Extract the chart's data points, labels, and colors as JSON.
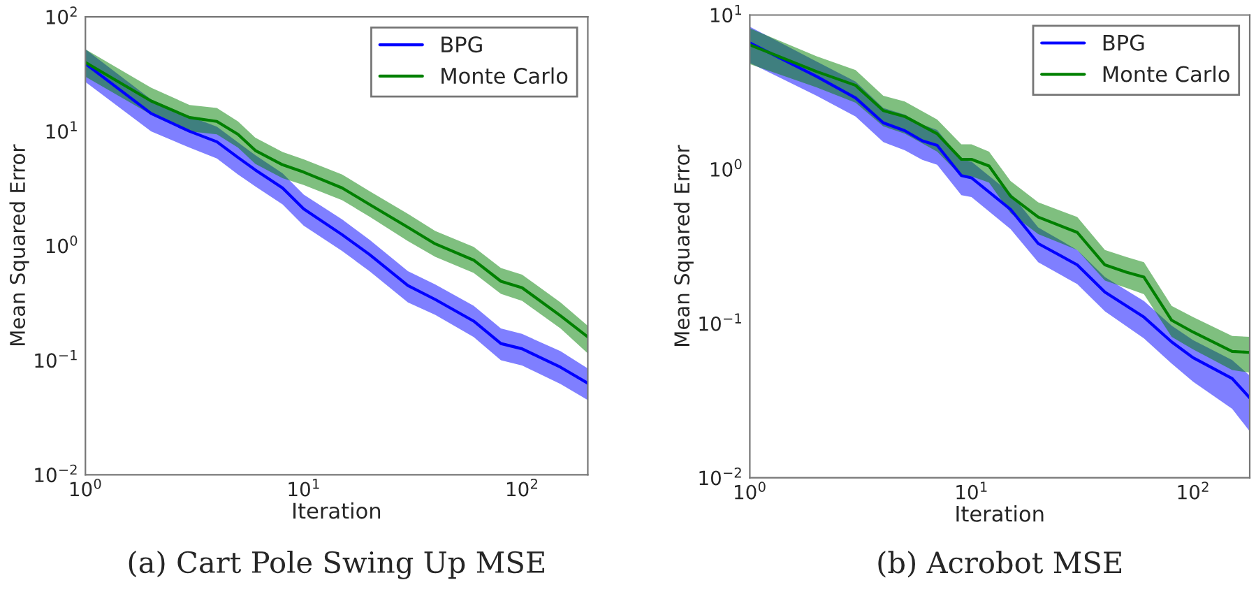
{
  "chart_data": [
    {
      "type": "line",
      "xlabel": "Iteration",
      "ylabel": "Mean Squared Error",
      "log": "xy",
      "grid": false,
      "legend": "top right",
      "line_style": "solid",
      "marker": "none",
      "xlim": [
        1,
        200
      ],
      "xticks": [
        {
          "value": 1,
          "label": "10$^{0}$"
        },
        {
          "value": 10,
          "label": "10$^{1}$"
        },
        {
          "value": 100,
          "label": "10$^{2}$"
        }
      ],
      "ylim": [
        0.01,
        100
      ],
      "yticks": [
        {
          "value": 0.01,
          "label": "10$^{−2}$"
        },
        {
          "value": 0.1,
          "label": "10$^{−1}$"
        },
        {
          "value": 1,
          "label": "10$^{0}$"
        },
        {
          "value": 10,
          "label": "10$^{1}$"
        },
        {
          "value": 100,
          "label": "10$^{2}$"
        }
      ],
      "annotations": [
        "(a) Cart Pole Swing Up MSE"
      ],
      "series": [
        {
          "name": "BPG",
          "color": "#0000ff",
          "x": [
            1,
            2,
            3,
            4,
            5,
            6,
            8,
            10,
            15,
            20,
            30,
            40,
            60,
            80,
            100,
            150,
            200
          ],
          "values": [
            39,
            14.3,
            10,
            8.1,
            5.9,
            4.6,
            3.2,
            2.1,
            1.25,
            0.84,
            0.45,
            0.34,
            0.22,
            0.14,
            0.126,
            0.087,
            0.063
          ],
          "lower": [
            27,
            10,
            7.2,
            5.8,
            4.2,
            3.3,
            2.3,
            1.5,
            0.9,
            0.6,
            0.32,
            0.25,
            0.16,
            0.1,
            0.09,
            0.062,
            0.045
          ],
          "upper": [
            52,
            19,
            13.5,
            11,
            8,
            6.2,
            4.3,
            2.8,
            1.7,
            1.13,
            0.6,
            0.46,
            0.3,
            0.19,
            0.17,
            0.12,
            0.085
          ]
        },
        {
          "name": "Monte Carlo",
          "color": "#008000",
          "x": [
            1,
            2,
            3,
            4,
            5,
            6,
            8,
            10,
            15,
            20,
            30,
            40,
            60,
            80,
            100,
            150,
            200
          ],
          "values": [
            40,
            18.4,
            13.2,
            12.2,
            9.4,
            6.8,
            5.1,
            4.4,
            3.2,
            2.3,
            1.45,
            1.04,
            0.75,
            0.49,
            0.43,
            0.245,
            0.16
          ],
          "lower": [
            30,
            14,
            10,
            9.4,
            7.2,
            5.2,
            3.9,
            3.4,
            2.5,
            1.8,
            1.1,
            0.8,
            0.58,
            0.38,
            0.33,
            0.19,
            0.115
          ],
          "upper": [
            52,
            24,
            17,
            16,
            12.2,
            8.8,
            6.6,
            5.7,
            4.2,
            3.0,
            1.9,
            1.35,
            0.98,
            0.64,
            0.56,
            0.32,
            0.2
          ]
        }
      ]
    },
    {
      "type": "line",
      "xlabel": "Iteration",
      "ylabel": "Mean Squared Error",
      "log": "xy",
      "grid": false,
      "legend": "top right",
      "line_style": "solid",
      "marker": "none",
      "xlim": [
        1,
        180
      ],
      "xticks": [
        {
          "value": 1,
          "label": "10$^{0}$"
        },
        {
          "value": 10,
          "label": "10$^{1}$"
        },
        {
          "value": 100,
          "label": "10$^{2}$"
        }
      ],
      "ylim": [
        0.01,
        10
      ],
      "yticks": [
        {
          "value": 0.01,
          "label": "10$^{−2}$"
        },
        {
          "value": 0.1,
          "label": "10$^{−1}$"
        },
        {
          "value": 1,
          "label": "10$^{0}$"
        },
        {
          "value": 10,
          "label": "10$^{1}$"
        }
      ],
      "annotations": [
        "(b) Acrobot MSE"
      ],
      "series": [
        {
          "name": "BPG",
          "color": "#0000ff",
          "x": [
            1,
            2,
            3,
            4,
            5,
            6,
            7,
            9,
            10,
            15,
            20,
            30,
            40,
            60,
            80,
            100,
            150,
            180
          ],
          "values": [
            6.6,
            4.0,
            2.9,
            2.0,
            1.78,
            1.53,
            1.43,
            0.91,
            0.88,
            0.55,
            0.33,
            0.24,
            0.16,
            0.11,
            0.076,
            0.06,
            0.044,
            0.033
          ],
          "lower": [
            4.9,
            3.0,
            2.2,
            1.5,
            1.33,
            1.15,
            1.07,
            0.68,
            0.66,
            0.41,
            0.25,
            0.18,
            0.12,
            0.08,
            0.055,
            0.042,
            0.028,
            0.02
          ],
          "upper": [
            8.4,
            5.0,
            3.7,
            2.5,
            2.26,
            1.95,
            1.8,
            1.16,
            1.12,
            0.7,
            0.42,
            0.3,
            0.2,
            0.14,
            0.097,
            0.078,
            0.058,
            0.046
          ]
        },
        {
          "name": "Monte Carlo",
          "color": "#008000",
          "x": [
            1,
            2,
            3,
            4,
            5,
            7,
            9,
            10,
            12,
            15,
            20,
            30,
            40,
            50,
            60,
            80,
            100,
            150,
            180
          ],
          "values": [
            6.4,
            4.3,
            3.5,
            2.4,
            2.2,
            1.7,
            1.16,
            1.16,
            1.05,
            0.67,
            0.49,
            0.39,
            0.24,
            0.215,
            0.2,
            0.105,
            0.088,
            0.066,
            0.065
          ],
          "lower": [
            4.8,
            3.4,
            2.7,
            1.9,
            1.7,
            1.3,
            0.9,
            0.9,
            0.82,
            0.52,
            0.38,
            0.3,
            0.19,
            0.17,
            0.155,
            0.082,
            0.068,
            0.05,
            0.048
          ],
          "upper": [
            8.2,
            5.4,
            4.4,
            3.0,
            2.75,
            2.1,
            1.45,
            1.45,
            1.3,
            0.84,
            0.61,
            0.49,
            0.3,
            0.27,
            0.25,
            0.13,
            0.11,
            0.083,
            0.082
          ]
        }
      ]
    }
  ]
}
